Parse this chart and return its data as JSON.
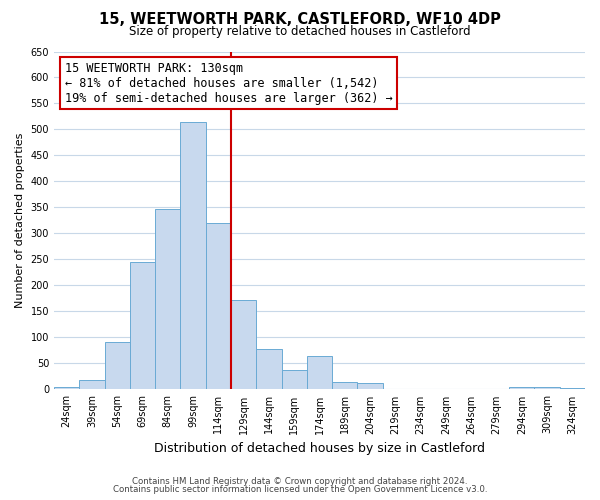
{
  "title": "15, WEETWORTH PARK, CASTLEFORD, WF10 4DP",
  "subtitle": "Size of property relative to detached houses in Castleford",
  "xlabel": "Distribution of detached houses by size in Castleford",
  "ylabel": "Number of detached properties",
  "bar_color": "#c8d9ee",
  "bar_edge_color": "#6aaad4",
  "bin_labels": [
    "24sqm",
    "39sqm",
    "54sqm",
    "69sqm",
    "84sqm",
    "99sqm",
    "114sqm",
    "129sqm",
    "144sqm",
    "159sqm",
    "174sqm",
    "189sqm",
    "204sqm",
    "219sqm",
    "234sqm",
    "249sqm",
    "264sqm",
    "279sqm",
    "294sqm",
    "309sqm",
    "324sqm"
  ],
  "bar_heights": [
    5,
    18,
    92,
    245,
    348,
    515,
    320,
    172,
    77,
    38,
    64,
    15,
    12,
    0,
    0,
    0,
    0,
    0,
    5,
    5,
    2
  ],
  "ylim": [
    0,
    650
  ],
  "yticks": [
    0,
    50,
    100,
    150,
    200,
    250,
    300,
    350,
    400,
    450,
    500,
    550,
    600,
    650
  ],
  "vline_x_index": 7,
  "vline_color": "#cc0000",
  "annotation_title": "15 WEETWORTH PARK: 130sqm",
  "annotation_line1": "← 81% of detached houses are smaller (1,542)",
  "annotation_line2": "19% of semi-detached houses are larger (362) →",
  "annotation_box_color": "#ffffff",
  "annotation_box_edge": "#cc0000",
  "footer1": "Contains HM Land Registry data © Crown copyright and database right 2024.",
  "footer2": "Contains public sector information licensed under the Open Government Licence v3.0.",
  "bg_color": "#ffffff",
  "grid_color": "#c8d8e8"
}
